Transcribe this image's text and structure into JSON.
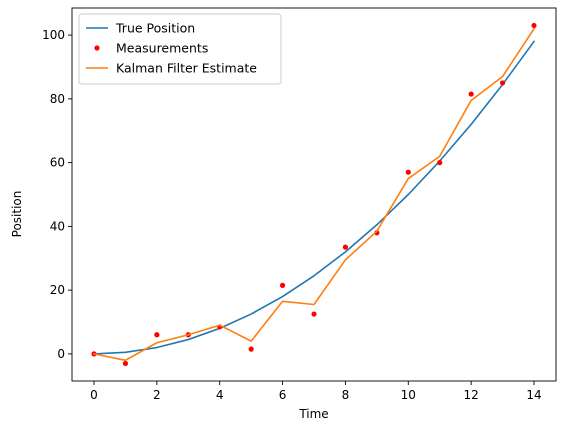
{
  "chart_data": {
    "type": "line",
    "title": "",
    "xlabel": "Time",
    "ylabel": "Position",
    "xlim": [
      -0.7,
      14.7
    ],
    "ylim": [
      -8.5,
      108.5
    ],
    "xticks": [
      0,
      2,
      4,
      6,
      8,
      10,
      12,
      14
    ],
    "yticks": [
      0,
      20,
      40,
      60,
      80,
      100
    ],
    "grid": false,
    "legend_position": "top-left",
    "series": [
      {
        "name": "True Position",
        "kind": "line",
        "color": "#1f77b4",
        "x": [
          0,
          1,
          2,
          3,
          4,
          5,
          6,
          7,
          8,
          9,
          10,
          11,
          12,
          13,
          14
        ],
        "y": [
          0,
          0.5,
          2,
          4.5,
          8,
          12.5,
          18,
          24.5,
          32,
          40.5,
          50,
          60.5,
          72,
          84.5,
          98
        ]
      },
      {
        "name": "Measurements",
        "kind": "scatter",
        "color": "#ff0000",
        "x": [
          0,
          1,
          2,
          3,
          4,
          5,
          6,
          7,
          8,
          9,
          10,
          11,
          12,
          13,
          14
        ],
        "y": [
          0,
          -3,
          6,
          6,
          8.5,
          1.5,
          21.5,
          12.5,
          33.5,
          38,
          57,
          60,
          81.5,
          85,
          103
        ]
      },
      {
        "name": "Kalman Filter Estimate",
        "kind": "line",
        "color": "#ff7f0e",
        "x": [
          0,
          1,
          2,
          3,
          4,
          5,
          6,
          7,
          8,
          9,
          10,
          11,
          12,
          13,
          14
        ],
        "y": [
          0,
          -2,
          3.5,
          6,
          9,
          4,
          16.5,
          15.5,
          29.5,
          38.5,
          55,
          62,
          79.5,
          87,
          102
        ]
      }
    ]
  }
}
